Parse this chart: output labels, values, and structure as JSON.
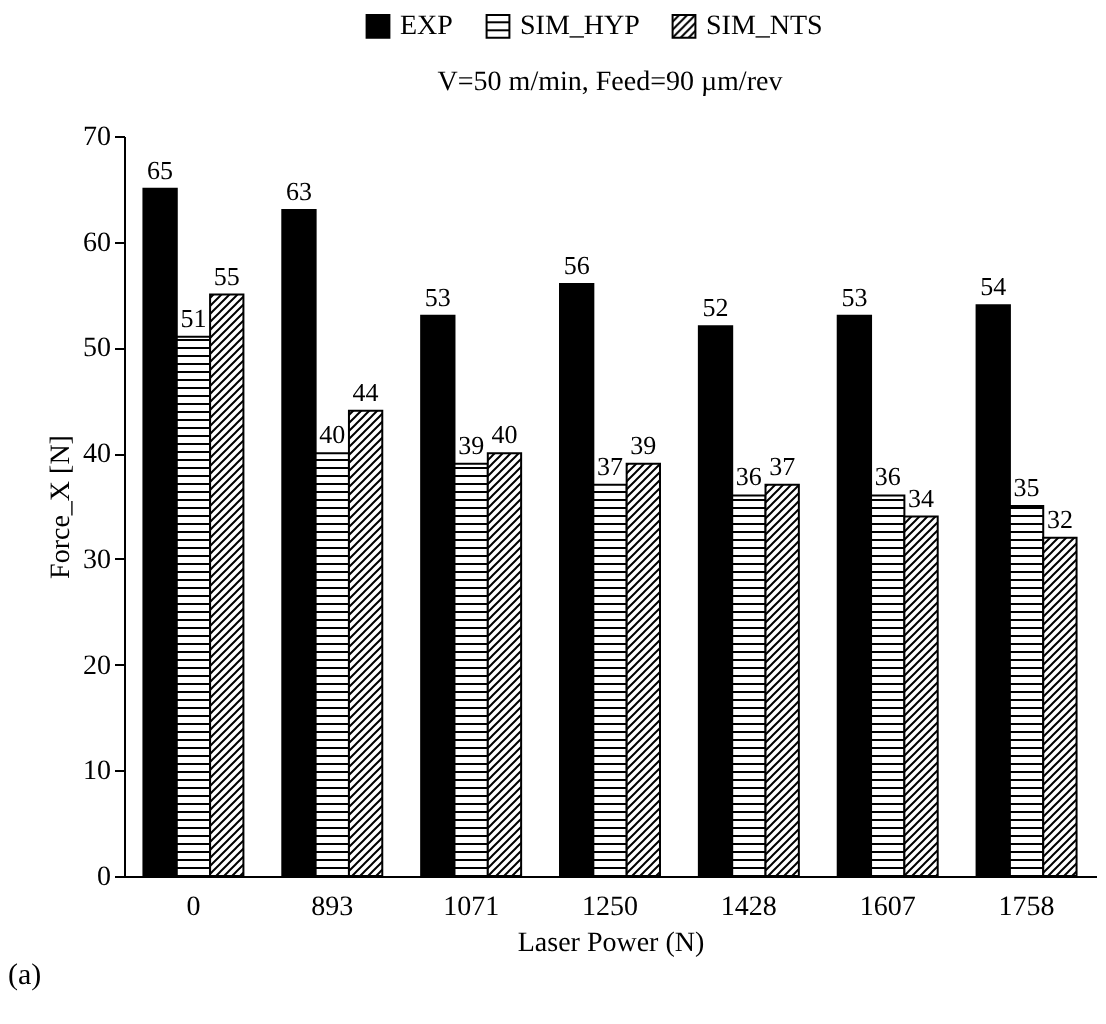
{
  "chart_data": {
    "type": "bar",
    "title": "V=50 m/min, Feed=90 µm/rev",
    "xlabel": "Laser Power (N)",
    "ylabel": "Force_X [N]",
    "categories": [
      "0",
      "893",
      "1071",
      "1250",
      "1428",
      "1607",
      "1758"
    ],
    "series": [
      {
        "name": "EXP",
        "color": "#000000",
        "values": [
          65,
          63,
          53,
          56,
          52,
          53,
          54
        ]
      },
      {
        "name": "SIM_HYP",
        "color": "#000000",
        "values": [
          51,
          40,
          39,
          37,
          36,
          36,
          35
        ]
      },
      {
        "name": "SIM_NTS",
        "color": "#000000",
        "values": [
          55,
          44,
          40,
          39,
          37,
          34,
          32
        ]
      }
    ],
    "ylim": [
      0,
      70
    ],
    "yticks": [
      0,
      10,
      20,
      30,
      40,
      50,
      60,
      70
    ],
    "grid": false,
    "legend": "top",
    "data_labels": true,
    "annotations": [
      "(a)"
    ]
  }
}
